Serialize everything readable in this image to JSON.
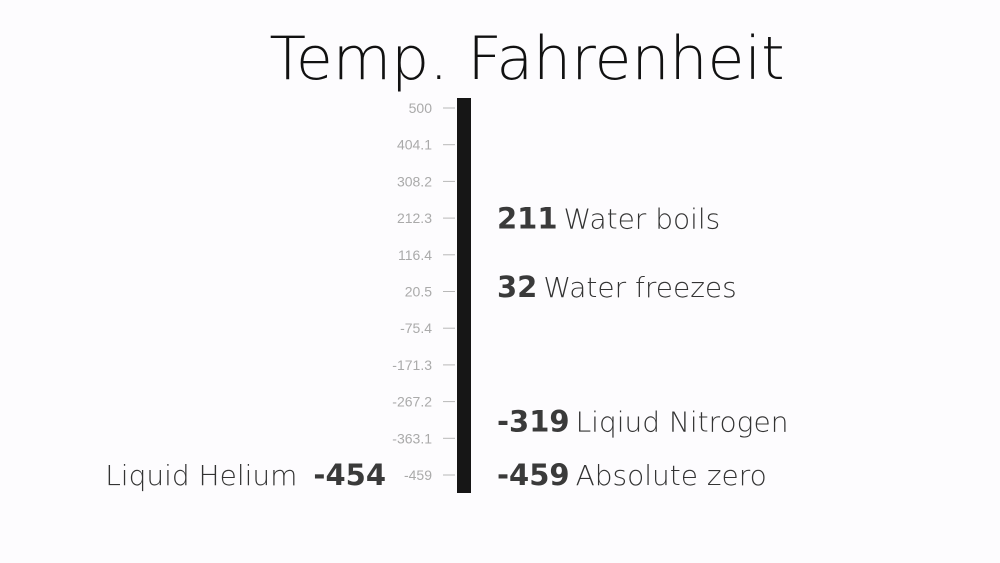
{
  "chart_data": {
    "type": "bar",
    "title": "Temp. Fahrenheit",
    "ylim": [
      -459,
      500
    ],
    "y_ticks": [
      "500",
      "404.1",
      "308.2",
      "212.3",
      "116.4",
      "20.5",
      "-75.4",
      "-171.3",
      "-267.2",
      "-363.1",
      "-459"
    ],
    "bar_range": [
      -459,
      500
    ],
    "bar_color": "#161616",
    "annotations": [
      {
        "value": 211,
        "value_label": "211",
        "label": "Water boils",
        "side": "right"
      },
      {
        "value": 32,
        "value_label": "32",
        "label": "Water freezes",
        "side": "right"
      },
      {
        "value": -319,
        "value_label": "-319",
        "label": "Liqiud Nitrogen",
        "side": "right"
      },
      {
        "value": -459,
        "value_label": "-459",
        "label": "Absolute zero",
        "side": "right"
      },
      {
        "value": -454,
        "value_label": "-454",
        "label": "Liquid Helium",
        "side": "left"
      }
    ]
  }
}
